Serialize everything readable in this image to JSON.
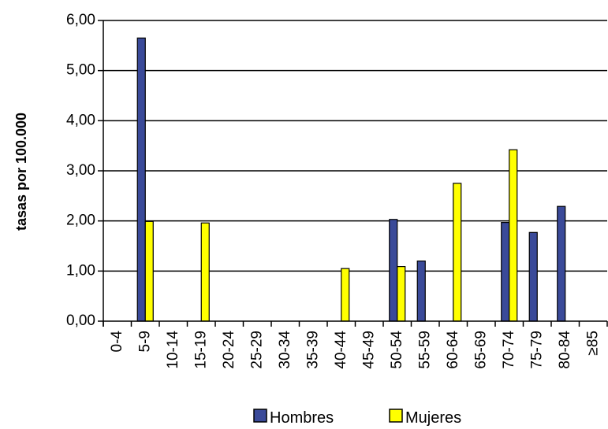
{
  "chart_data": {
    "type": "bar",
    "categories": [
      "0-4",
      "5-9",
      "10-14",
      "15-19",
      "20-24",
      "25-29",
      "30-34",
      "35-39",
      "40-44",
      "45-49",
      "50-54",
      "55-59",
      "60-64",
      "65-69",
      "70-74",
      "75-79",
      "80-84",
      "≥85"
    ],
    "series": [
      {
        "name": "Hombres",
        "color": "#3a4a99",
        "values": [
          0,
          5.65,
          0,
          0,
          0,
          0,
          0,
          0,
          0,
          0,
          2.03,
          1.2,
          0,
          0,
          1.97,
          1.77,
          2.29,
          0
        ]
      },
      {
        "name": "Mujeres",
        "color": "#ffff00",
        "values": [
          0,
          1.99,
          0,
          1.96,
          0,
          0,
          0,
          0,
          1.05,
          0,
          1.09,
          0,
          2.75,
          0,
          3.42,
          0,
          0,
          0
        ]
      }
    ],
    "xlabel": "",
    "ylabel": "tasas por 100.000",
    "ylim": [
      0,
      6
    ],
    "yticks": [
      "0,00",
      "1,00",
      "2,00",
      "3,00",
      "4,00",
      "5,00",
      "6,00"
    ],
    "grid": true,
    "legend_position": "bottom"
  }
}
